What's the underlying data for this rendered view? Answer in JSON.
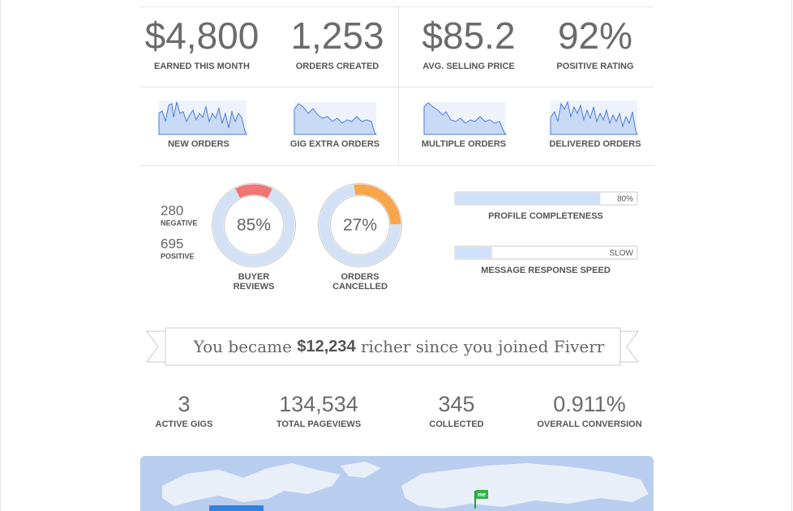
{
  "top_stats": [
    {
      "value": "$4,800",
      "label": "EARNED THIS MONTH"
    },
    {
      "value": "1,253",
      "label": "ORDERS CREATED"
    },
    {
      "value": "$85.2",
      "label": "AVG. SELLING PRICE"
    },
    {
      "value": "92%",
      "label": "POSITIVE RATING"
    }
  ],
  "sparklines": [
    "NEW ORDERS",
    "GIG EXTRA ORDERS",
    "MULTIPLE ORDERS",
    "DELIVERED ORDERS"
  ],
  "review_counts": [
    {
      "count": "280",
      "label": "NEGATIVE"
    },
    {
      "count": "695",
      "label": "POSITIVE"
    }
  ],
  "donuts": [
    {
      "value": 85,
      "label": "85%",
      "caption": [
        "BUYER",
        "REVIEWS"
      ],
      "value_color": "#d3e1f7",
      "rest_color": "#f07575"
    },
    {
      "value": 27,
      "label": "27%",
      "caption": [
        "ORDERS",
        "CANCELLED"
      ],
      "value_color": "#f7a64a",
      "rest_color": "#d3e1f7"
    }
  ],
  "progress": [
    {
      "value": 80,
      "label": "80%",
      "caption": "PROFILE COMPLETENESS"
    },
    {
      "value": 20,
      "label": "SLOW",
      "caption": "MESSAGE RESPONSE SPEED"
    }
  ],
  "ribbon": {
    "before": "You became ",
    "amount": "$12,234",
    "after": " richer since you joined Fiverr"
  },
  "bottom_stats": [
    {
      "value": "3",
      "label": "ACTIVE GIGS"
    },
    {
      "value": "134,534",
      "label": "TOTAL PAGEVIEWS"
    },
    {
      "value": "345",
      "label": "COLLECTED"
    },
    {
      "value": "0.911%",
      "label": "OVERALL CONVERSION"
    }
  ],
  "map": {
    "flag_label": "me"
  }
}
